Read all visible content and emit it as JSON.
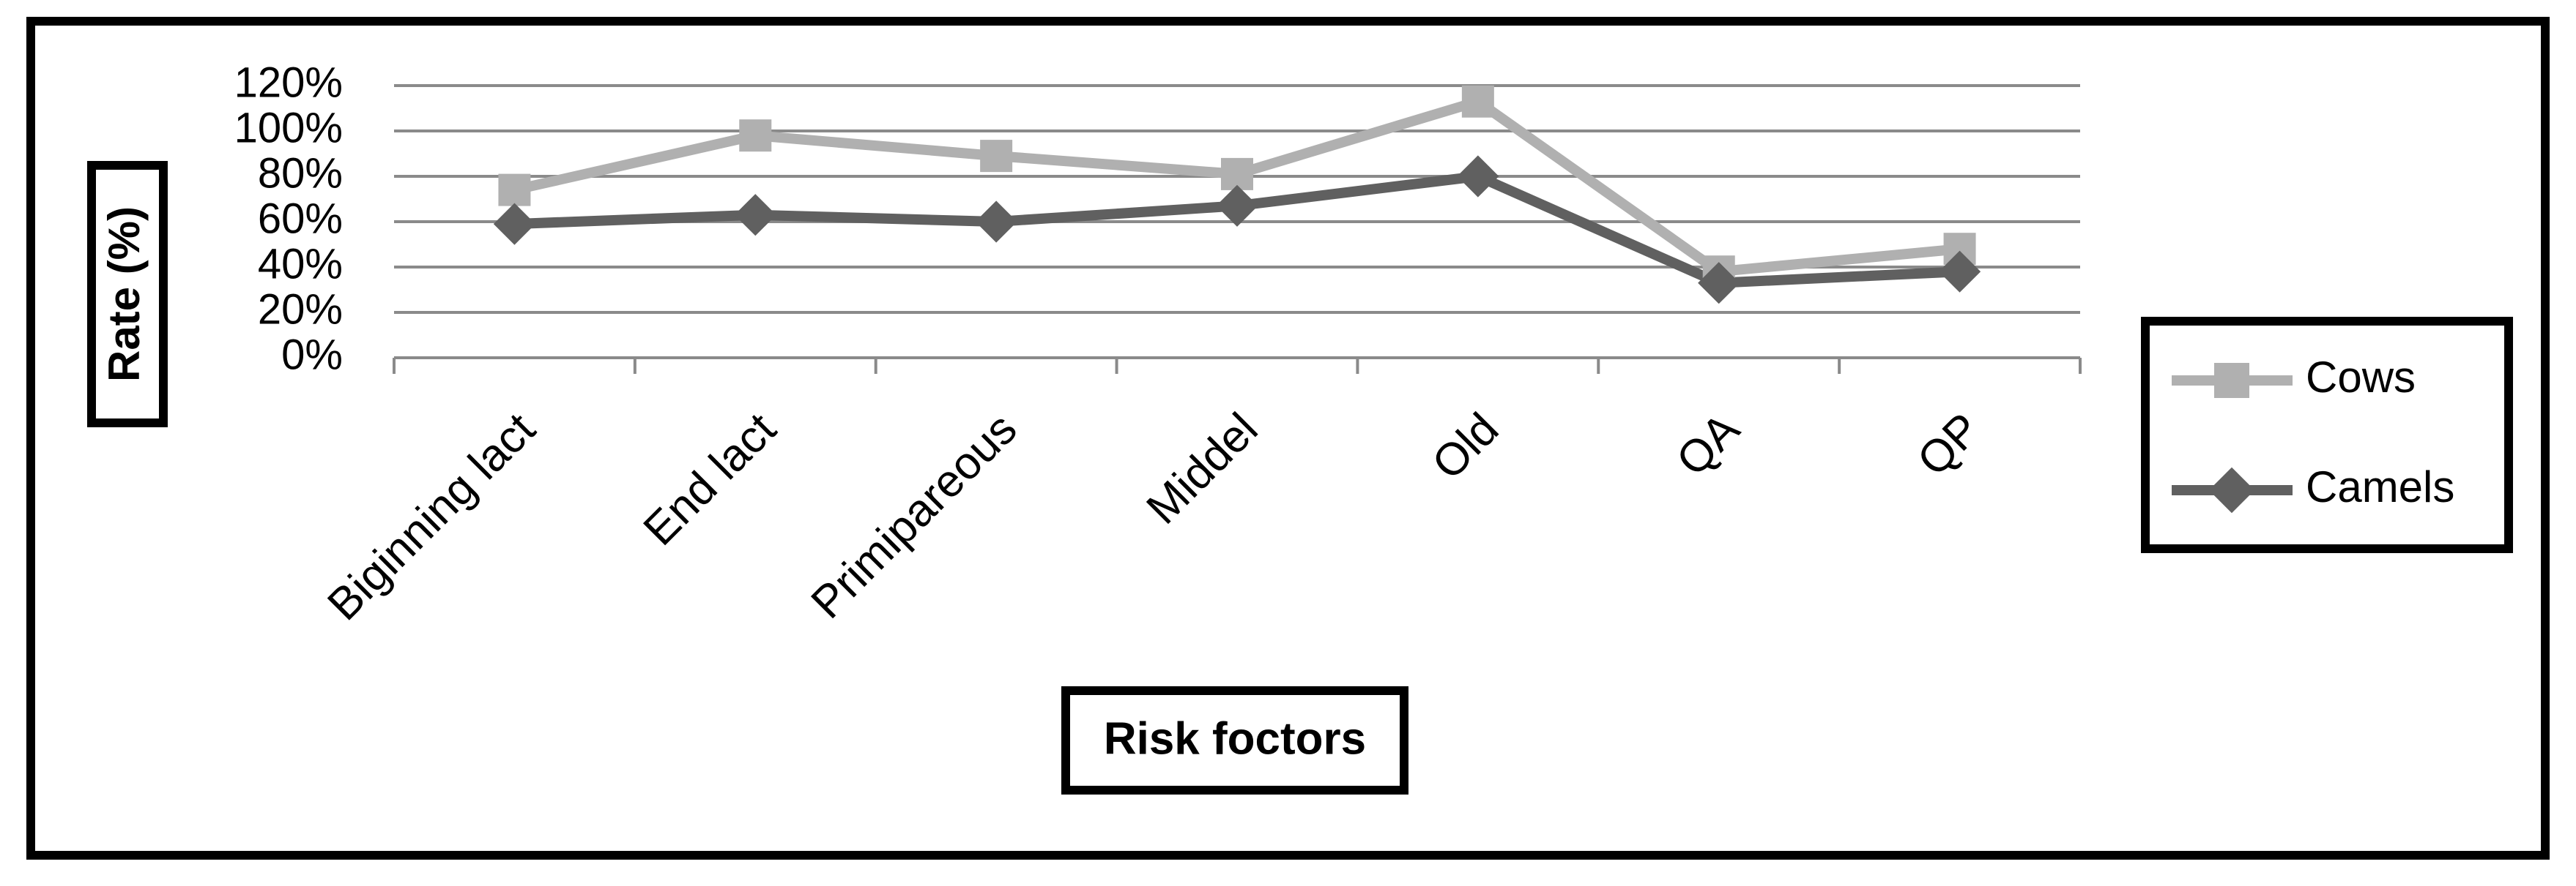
{
  "chart_data": {
    "type": "line",
    "x_label": "Risk foctors",
    "y_label": "Rate (%)",
    "categories": [
      "Biginning lact",
      "End lact",
      "Primipareous",
      "Middel",
      "Old",
      "QA",
      "QP"
    ],
    "series": [
      {
        "name": "Cows",
        "color": "#b0b0b0",
        "marker": "square",
        "values": [
          74,
          98,
          89,
          81,
          113,
          38,
          48
        ]
      },
      {
        "name": "Camels",
        "color": "#606060",
        "marker": "diamond",
        "values": [
          59,
          63,
          60,
          67,
          80,
          33,
          38
        ]
      }
    ],
    "ylim": [
      0,
      120
    ],
    "yticks": [
      {
        "value": 0,
        "label": "0%"
      },
      {
        "value": 20,
        "label": "20%"
      },
      {
        "value": 40,
        "label": "40%"
      },
      {
        "value": 60,
        "label": "60%"
      },
      {
        "value": 80,
        "label": "80%"
      },
      {
        "value": 100,
        "label": "100%"
      },
      {
        "value": 120,
        "label": "120%"
      }
    ],
    "grid": true,
    "legend": "right"
  }
}
